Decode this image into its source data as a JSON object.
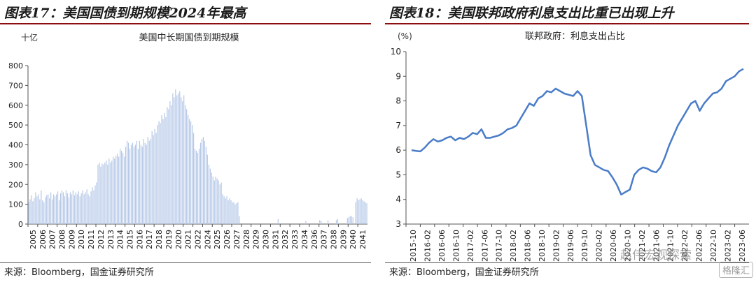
{
  "left": {
    "figure_title": "图表17：美国国债到期规模2024年最高",
    "source": "来源：Bloomberg，国金证券研究所",
    "chart_data": {
      "type": "bar",
      "title": "美国中长期国债到期规模",
      "unit_label": "十亿",
      "ylim": [
        0,
        800
      ],
      "yticks": [
        0,
        100,
        200,
        300,
        400,
        500,
        600,
        700,
        800
      ],
      "xticks": [
        "2005",
        "2006",
        "2007",
        "2008",
        "2009",
        "2010",
        "2011",
        "2012",
        "2013",
        "2014",
        "2015",
        "2016",
        "2017",
        "2018",
        "2019",
        "2020",
        "2021",
        "2022",
        "2024",
        "2025",
        "2026",
        "2027",
        "2028",
        "2029",
        "2030",
        "2031",
        "2032",
        "2033",
        "2034",
        "2036",
        "2037",
        "2038",
        "2039",
        "2040",
        "2041"
      ],
      "color": "#b4c7e7",
      "values": [
        110,
        125,
        145,
        115,
        130,
        160,
        140,
        150,
        125,
        170,
        120,
        110,
        135,
        145,
        150,
        130,
        160,
        125,
        150,
        140,
        150,
        165,
        120,
        155,
        170,
        160,
        140,
        170,
        155,
        135,
        160,
        150,
        170,
        145,
        160,
        150,
        165,
        140,
        155,
        170,
        150,
        160,
        175,
        150,
        140,
        165,
        185,
        170,
        195,
        210,
        300,
        310,
        290,
        305,
        300,
        310,
        320,
        300,
        330,
        310,
        320,
        340,
        330,
        345,
        355,
        340,
        380,
        370,
        360,
        340,
        390,
        420,
        410,
        380,
        400,
        410,
        390,
        400,
        420,
        380,
        420,
        400,
        390,
        430,
        410,
        400,
        440,
        420,
        430,
        470,
        450,
        480,
        460,
        500,
        520,
        510,
        550,
        530,
        560,
        540,
        590,
        580,
        620,
        600,
        660,
        640,
        680,
        650,
        660,
        670,
        640,
        620,
        650,
        600,
        580,
        550,
        530,
        520,
        500,
        460,
        380,
        370,
        360,
        380,
        410,
        430,
        440,
        420,
        390,
        350,
        300,
        280,
        260,
        240,
        220,
        240,
        230,
        220,
        200,
        210,
        150,
        140,
        130,
        140,
        120,
        130,
        120,
        110,
        110,
        100,
        105,
        110,
        40,
        0,
        0,
        0,
        0,
        0,
        0,
        0,
        0,
        0,
        0,
        0,
        0,
        0,
        0,
        0,
        0,
        0,
        0,
        0,
        0,
        0,
        0,
        0,
        0,
        0,
        0,
        0,
        25,
        0,
        0,
        0,
        0,
        0,
        0,
        0,
        0,
        0,
        0,
        0,
        0,
        0,
        0,
        0,
        0,
        0,
        0,
        0,
        15,
        0,
        0,
        0,
        0,
        0,
        0,
        0,
        0,
        0,
        20,
        15,
        0,
        0,
        0,
        0,
        20,
        0,
        0,
        0,
        0,
        0,
        20,
        25,
        0,
        0,
        0,
        0,
        0,
        0,
        30,
        35,
        40,
        40,
        35,
        0,
        110,
        130,
        120,
        125,
        130,
        120,
        115,
        110,
        105
      ]
    }
  },
  "right": {
    "figure_title": "图表18：美国联邦政府利息支出比重已出现上升",
    "source": "来源：Bloomberg，国金证券研究所",
    "chart_data": {
      "type": "line",
      "title": "联邦政府：利息支出占比",
      "unit_label": "(%)",
      "ylim": [
        3,
        10
      ],
      "yticks": [
        3,
        4,
        5,
        6,
        7,
        8,
        9,
        10
      ],
      "xticks": [
        "2015-10",
        "2016-02",
        "2016-06",
        "2016-10",
        "2017-02",
        "2017-06",
        "2017-10",
        "2018-02",
        "2018-06",
        "2018-10",
        "2019-02",
        "2019-06",
        "2019-10",
        "2020-02",
        "2020-06",
        "2020-10",
        "2021-02",
        "2021-06",
        "2021-10",
        "2022-02",
        "2022-06",
        "2022-10",
        "2023-02",
        "2023-06"
      ],
      "color": "#4a7cc8",
      "series": [
        {
          "values": [
            6.0,
            5.97,
            5.95,
            6.1,
            6.3,
            6.45,
            6.35,
            6.4,
            6.5,
            6.55,
            6.4,
            6.5,
            6.45,
            6.55,
            6.7,
            6.65,
            6.85,
            6.5,
            6.5,
            6.55,
            6.6,
            6.7,
            6.85,
            6.9,
            7.0,
            7.3,
            7.6,
            7.9,
            7.8,
            8.1,
            8.2,
            8.4,
            8.35,
            8.5,
            8.4,
            8.3,
            8.25,
            8.2,
            8.4,
            8.2,
            7.0,
            5.8,
            5.4,
            5.3,
            5.2,
            5.15,
            4.9,
            4.6,
            4.2,
            4.3,
            4.4,
            5.0,
            5.2,
            5.3,
            5.25,
            5.15,
            5.1,
            5.3,
            5.7,
            6.2,
            6.6,
            7.0,
            7.3,
            7.6,
            7.9,
            8.0,
            7.6,
            7.9,
            8.1,
            8.3,
            8.35,
            8.5,
            8.8,
            8.9,
            9.0,
            9.2,
            9.3
          ]
        }
      ]
    }
  },
  "watermark": {
    "text": "赵伟宏观探索",
    "logo": "格隆汇"
  }
}
